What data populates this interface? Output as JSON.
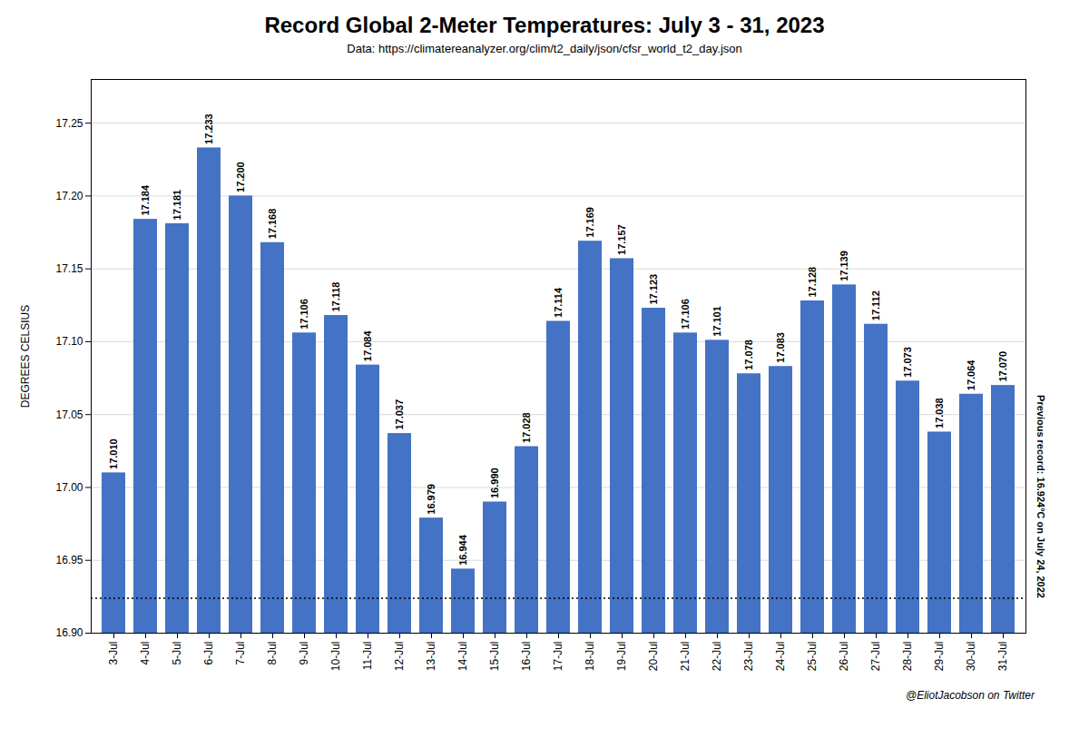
{
  "chart_data": {
    "type": "bar",
    "title": "Record Global 2-Meter Temperatures: July 3 - 31, 2023",
    "subtitle": "Data: https://climatereanalyzer.org/clim/t2_daily/json/cfsr_world_t2_day.json",
    "ylabel": "DEGREES CELSIUS",
    "caption": "@EliotJacobson on Twitter",
    "categories": [
      "3-Jul",
      "4-Jul",
      "5-Jul",
      "6-Jul",
      "7-Jul",
      "8-Jul",
      "9-Jul",
      "10-Jul",
      "11-Jul",
      "12-Jul",
      "13-Jul",
      "14-Jul",
      "15-Jul",
      "16-Jul",
      "17-Jul",
      "18-Jul",
      "19-Jul",
      "20-Jul",
      "21-Jul",
      "22-Jul",
      "23-Jul",
      "24-Jul",
      "25-Jul",
      "26-Jul",
      "27-Jul",
      "28-Jul",
      "29-Jul",
      "30-Jul",
      "31-Jul"
    ],
    "values": [
      17.01,
      17.184,
      17.181,
      17.233,
      17.2,
      17.168,
      17.106,
      17.118,
      17.084,
      17.037,
      16.979,
      16.944,
      16.99,
      17.028,
      17.114,
      17.169,
      17.157,
      17.123,
      17.106,
      17.101,
      17.078,
      17.083,
      17.128,
      17.139,
      17.112,
      17.073,
      17.038,
      17.064,
      17.07
    ],
    "value_labels": [
      "17.010",
      "17.184",
      "17.181",
      "17.233",
      "17.200",
      "17.168",
      "17.106",
      "17.118",
      "17.084",
      "17.037",
      "16.979",
      "16.944",
      "16.990",
      "17.028",
      "17.114",
      "17.169",
      "17.157",
      "17.123",
      "17.106",
      "17.101",
      "17.078",
      "17.083",
      "17.128",
      "17.139",
      "17.112",
      "17.073",
      "17.038",
      "17.064",
      "17.070"
    ],
    "data_labels": true,
    "color": "#4472C4",
    "ylim": [
      16.9,
      17.28
    ],
    "yticks": [
      {
        "value": 16.9,
        "label": "16.90"
      },
      16.95,
      {
        "value": 17.0,
        "label": "17.00"
      },
      17.05,
      {
        "value": 17.1,
        "label": "17.10"
      },
      17.15,
      {
        "value": 17.2,
        "label": "17.20"
      },
      17.25
    ],
    "grid": true,
    "annotations": [
      {
        "text": "Previous record: 16.924°C on July 24, 2022",
        "y": 16.924,
        "line_style": "dotted"
      }
    ]
  }
}
